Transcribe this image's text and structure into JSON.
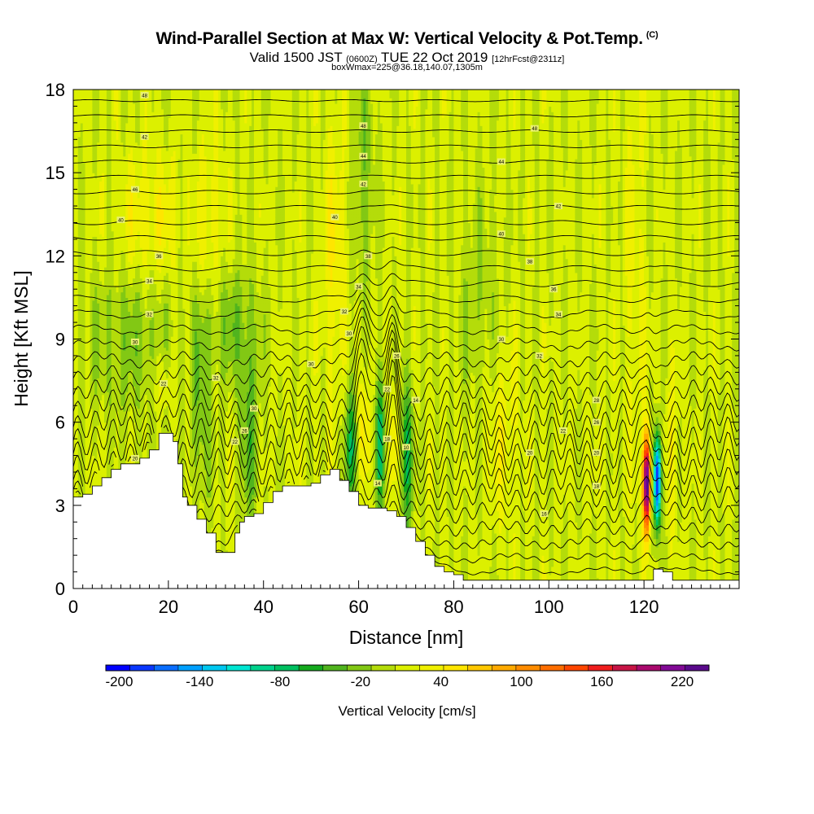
{
  "title": {
    "main": "Wind-Parallel Section at Max W: Vertical Velocity & Pot.Temp.",
    "copyright": "(C)",
    "valid_prefix": "Valid 1500 JST",
    "valid_utc": "(0600Z)",
    "valid_date": "TUE 22 Oct 2019",
    "forecast": "[12hrFcst@2311z]",
    "boxinfo": "boxWmax=225@36.18,140.07,1305m"
  },
  "chart_data": {
    "type": "heatmap",
    "xlabel": "Distance [nm]",
    "ylabel": "Height [Kft MSL]",
    "xlim": [
      0,
      140
    ],
    "ylim": [
      0,
      18
    ],
    "x_ticks": [
      0,
      20,
      40,
      60,
      80,
      100,
      120
    ],
    "y_ticks": [
      0,
      3,
      6,
      9,
      12,
      15,
      18
    ],
    "colorbar": {
      "title": "Vertical Velocity [cm/s]",
      "tick_labels": [
        "-200",
        "-140",
        "-80",
        "-20",
        "40",
        "100",
        "160",
        "220"
      ],
      "tick_values": [
        -200,
        -140,
        -80,
        -20,
        40,
        100,
        160,
        220
      ],
      "range": [
        -210,
        240
      ],
      "colors": [
        "#0000ff",
        "#0a37ff",
        "#0a6eff",
        "#00a0ff",
        "#00c8f0",
        "#00e6d2",
        "#00d28c",
        "#00c060",
        "#14aa1e",
        "#50b41e",
        "#82c814",
        "#b4dc0a",
        "#dcf000",
        "#f0f000",
        "#ffe600",
        "#ffc800",
        "#ffaa00",
        "#ff8c00",
        "#ff6e00",
        "#ff4600",
        "#f01e1e",
        "#c81446",
        "#aa0a6e",
        "#820a96",
        "#5a0a8c"
      ]
    },
    "wmax": 225,
    "terrain_kft": [
      [
        0,
        3.3
      ],
      [
        2,
        3.4
      ],
      [
        4,
        3.7
      ],
      [
        6,
        4.0
      ],
      [
        8,
        4.3
      ],
      [
        10,
        4.5
      ],
      [
        12,
        4.5
      ],
      [
        14,
        4.7
      ],
      [
        16,
        5.0
      ],
      [
        18,
        5.6
      ],
      [
        20,
        5.6
      ],
      [
        21,
        5.3
      ],
      [
        22,
        4.5
      ],
      [
        23,
        3.3
      ],
      [
        24,
        3.0
      ],
      [
        26,
        2.5
      ],
      [
        28,
        2.0
      ],
      [
        30,
        1.3
      ],
      [
        32,
        1.3
      ],
      [
        34,
        2.0
      ],
      [
        35,
        2.4
      ],
      [
        36,
        2.6
      ],
      [
        38,
        2.7
      ],
      [
        40,
        3.1
      ],
      [
        42,
        3.5
      ],
      [
        44,
        3.7
      ],
      [
        46,
        3.7
      ],
      [
        48,
        3.7
      ],
      [
        50,
        3.8
      ],
      [
        52,
        4.1
      ],
      [
        54,
        4.3
      ],
      [
        56,
        3.9
      ],
      [
        58,
        3.5
      ],
      [
        60,
        3.0
      ],
      [
        62,
        2.9
      ],
      [
        64,
        2.9
      ],
      [
        66,
        2.8
      ],
      [
        68,
        2.6
      ],
      [
        70,
        2.2
      ],
      [
        72,
        1.7
      ],
      [
        74,
        1.2
      ],
      [
        76,
        0.8
      ],
      [
        78,
        0.6
      ],
      [
        80,
        0.5
      ],
      [
        82,
        0.3
      ],
      [
        84,
        0.3
      ],
      [
        120,
        0.3
      ],
      [
        122,
        0.7
      ],
      [
        124,
        0.6
      ],
      [
        126,
        0.3
      ],
      [
        140,
        0.3
      ]
    ],
    "theta_labels": [
      {
        "x": 15,
        "y": 17.8,
        "label": "48"
      },
      {
        "x": 15,
        "y": 16.3,
        "label": "42"
      },
      {
        "x": 13,
        "y": 14.4,
        "label": "46"
      },
      {
        "x": 10,
        "y": 13.3,
        "label": "40"
      },
      {
        "x": 18,
        "y": 12.0,
        "label": "36"
      },
      {
        "x": 16,
        "y": 11.1,
        "label": "34"
      },
      {
        "x": 16,
        "y": 9.9,
        "label": "32"
      },
      {
        "x": 13,
        "y": 8.9,
        "label": "30"
      },
      {
        "x": 19,
        "y": 7.4,
        "label": "22"
      },
      {
        "x": 13,
        "y": 4.7,
        "label": "20"
      },
      {
        "x": 30,
        "y": 7.6,
        "label": "32"
      },
      {
        "x": 38,
        "y": 6.5,
        "label": "30"
      },
      {
        "x": 36,
        "y": 5.7,
        "label": "26"
      },
      {
        "x": 34,
        "y": 5.3,
        "label": "22"
      },
      {
        "x": 50,
        "y": 8.1,
        "label": "30"
      },
      {
        "x": 61,
        "y": 16.7,
        "label": "48"
      },
      {
        "x": 61,
        "y": 15.6,
        "label": "44"
      },
      {
        "x": 61,
        "y": 14.6,
        "label": "42"
      },
      {
        "x": 55,
        "y": 13.4,
        "label": "40"
      },
      {
        "x": 62,
        "y": 12.0,
        "label": "38"
      },
      {
        "x": 60,
        "y": 10.9,
        "label": "34"
      },
      {
        "x": 57,
        "y": 10.0,
        "label": "32"
      },
      {
        "x": 58,
        "y": 9.2,
        "label": "30"
      },
      {
        "x": 68,
        "y": 8.4,
        "label": "26"
      },
      {
        "x": 66,
        "y": 7.2,
        "label": "22"
      },
      {
        "x": 72,
        "y": 6.8,
        "label": "14"
      },
      {
        "x": 66,
        "y": 5.4,
        "label": "18"
      },
      {
        "x": 70,
        "y": 5.1,
        "label": "10"
      },
      {
        "x": 64,
        "y": 3.8,
        "label": "14"
      },
      {
        "x": 97,
        "y": 16.6,
        "label": "48"
      },
      {
        "x": 90,
        "y": 15.4,
        "label": "44"
      },
      {
        "x": 102,
        "y": 13.8,
        "label": "42"
      },
      {
        "x": 90,
        "y": 12.8,
        "label": "40"
      },
      {
        "x": 96,
        "y": 11.8,
        "label": "38"
      },
      {
        "x": 101,
        "y": 10.8,
        "label": "36"
      },
      {
        "x": 102,
        "y": 9.9,
        "label": "34"
      },
      {
        "x": 90,
        "y": 9.0,
        "label": "30"
      },
      {
        "x": 98,
        "y": 8.4,
        "label": "32"
      },
      {
        "x": 110,
        "y": 6.8,
        "label": "28"
      },
      {
        "x": 110,
        "y": 6.0,
        "label": "26"
      },
      {
        "x": 103,
        "y": 5.7,
        "label": "22"
      },
      {
        "x": 96,
        "y": 4.9,
        "label": "20"
      },
      {
        "x": 110,
        "y": 4.9,
        "label": "20"
      },
      {
        "x": 110,
        "y": 3.7,
        "label": "18"
      },
      {
        "x": 99,
        "y": 2.7,
        "label": "16"
      }
    ]
  }
}
